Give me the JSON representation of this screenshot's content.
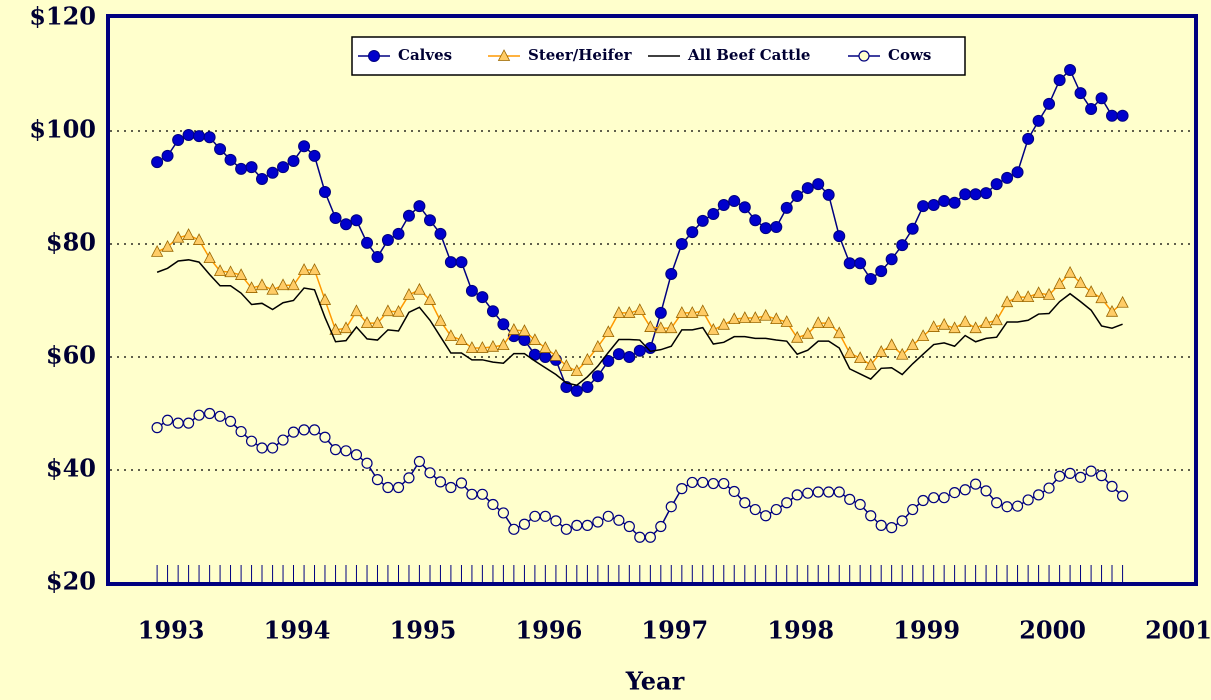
{
  "chart_data": {
    "type": "line",
    "x_label": "Year",
    "x": [
      1993,
      1993.083,
      1993.167,
      1993.25,
      1993.333,
      1993.417,
      1993.5,
      1993.583,
      1993.667,
      1993.75,
      1993.833,
      1993.917,
      1994,
      1994.083,
      1994.167,
      1994.25,
      1994.333,
      1994.417,
      1994.5,
      1994.583,
      1994.667,
      1994.75,
      1994.833,
      1994.917,
      1995,
      1995.083,
      1995.167,
      1995.25,
      1995.333,
      1995.417,
      1995.5,
      1995.583,
      1995.667,
      1995.75,
      1995.833,
      1995.917,
      1996,
      1996.083,
      1996.167,
      1996.25,
      1996.333,
      1996.417,
      1996.5,
      1996.583,
      1996.667,
      1996.75,
      1996.833,
      1996.917,
      1997,
      1997.083,
      1997.167,
      1997.25,
      1997.333,
      1997.417,
      1997.5,
      1997.583,
      1997.667,
      1997.75,
      1997.833,
      1997.917,
      1998,
      1998.083,
      1998.167,
      1998.25,
      1998.333,
      1998.417,
      1998.5,
      1998.583,
      1998.667,
      1998.75,
      1998.833,
      1998.917,
      1999,
      1999.083,
      1999.167,
      1999.25,
      1999.333,
      1999.417,
      1999.5,
      1999.583,
      1999.667,
      1999.75,
      1999.833,
      1999.917,
      2000,
      2000.083,
      2000.167,
      2000.25,
      2000.333,
      2000.417,
      2000.5,
      2000.583,
      2000.667
    ],
    "series": [
      {
        "name": "Calves",
        "color": "#0000cc",
        "marker": "filled-circle",
        "values": [
          94.5,
          95.6,
          98.4,
          99.3,
          99.1,
          98.9,
          96.8,
          94.9,
          93.3,
          93.6,
          91.5,
          92.6,
          93.6,
          94.7,
          97.3,
          95.6,
          89.2,
          84.6,
          83.5,
          84.2,
          80.2,
          77.7,
          80.7,
          81.8,
          85.0,
          86.7,
          84.2,
          81.8,
          76.8,
          76.8,
          71.7,
          70.6,
          68.1,
          65.8,
          63.7,
          63.0,
          60.4,
          60.0,
          59.5,
          54.7,
          54.0,
          54.7,
          56.6,
          59.3,
          60.5,
          60.0,
          61.1,
          61.6,
          67.8,
          74.7,
          80.0,
          82.1,
          84.1,
          85.3,
          86.9,
          87.6,
          86.5,
          84.2,
          82.8,
          83.0,
          86.4,
          88.5,
          89.9,
          90.6,
          88.7,
          81.4,
          76.6,
          76.6,
          73.8,
          75.2,
          77.3,
          79.8,
          82.7,
          86.7,
          86.9,
          87.6,
          87.3,
          88.8,
          88.8,
          89.0,
          90.6,
          91.7,
          92.7,
          98.6,
          101.8,
          104.8,
          109.0,
          110.8,
          106.7,
          103.9,
          105.8,
          102.7,
          102.7
        ]
      },
      {
        "name": "Steer/Heifer",
        "color": "#ff9900",
        "marker": "triangle",
        "values": [
          78.6,
          79.5,
          81.1,
          81.6,
          80.7,
          77.5,
          75.2,
          75.0,
          74.5,
          72.2,
          72.7,
          71.9,
          72.7,
          72.7,
          75.4,
          75.4,
          70.1,
          64.8,
          65.1,
          68.1,
          66.0,
          66.0,
          68.1,
          68.0,
          71.0,
          71.9,
          70.1,
          66.4,
          63.7,
          63.0,
          61.6,
          61.6,
          61.8,
          62.1,
          64.8,
          64.6,
          63.0,
          61.6,
          60.2,
          58.4,
          57.5,
          59.5,
          61.8,
          64.4,
          67.8,
          67.8,
          68.3,
          65.3,
          65.1,
          65.1,
          67.8,
          67.8,
          68.1,
          64.8,
          65.7,
          66.7,
          66.9,
          66.9,
          67.3,
          66.7,
          66.2,
          63.4,
          64.1,
          66.0,
          66.0,
          64.2,
          60.7,
          59.8,
          58.6,
          60.9,
          62.1,
          60.4,
          62.1,
          63.7,
          65.3,
          65.7,
          65.1,
          66.2,
          65.1,
          66.0,
          66.5,
          69.7,
          70.6,
          70.6,
          71.3,
          71.0,
          72.9,
          74.9,
          73.1,
          71.5,
          70.4,
          68.0,
          69.6
        ]
      },
      {
        "name": "All Beef Cattle",
        "color": "#000000",
        "marker": "none",
        "values": [
          75.0,
          75.7,
          77.0,
          77.2,
          76.8,
          74.6,
          72.6,
          72.6,
          71.3,
          69.3,
          69.5,
          68.4,
          69.6,
          70.0,
          72.2,
          71.9,
          67.0,
          62.7,
          62.9,
          65.3,
          63.2,
          63.0,
          64.8,
          64.6,
          67.9,
          68.8,
          66.5,
          63.6,
          60.7,
          60.7,
          59.5,
          59.5,
          59.1,
          58.9,
          60.6,
          60.6,
          59.3,
          58.1,
          56.9,
          55.4,
          55.0,
          56.5,
          58.4,
          60.8,
          63.1,
          63.1,
          63.0,
          61.0,
          61.3,
          61.9,
          64.8,
          64.8,
          65.2,
          62.3,
          62.6,
          63.6,
          63.6,
          63.3,
          63.3,
          63.0,
          62.8,
          60.5,
          61.2,
          62.8,
          62.8,
          61.6,
          57.9,
          57.0,
          56.1,
          58.0,
          58.1,
          56.9,
          58.8,
          60.5,
          62.2,
          62.5,
          61.9,
          63.8,
          62.7,
          63.3,
          63.5,
          66.2,
          66.2,
          66.5,
          67.6,
          67.7,
          69.8,
          71.2,
          69.8,
          68.3,
          65.5,
          65.1,
          65.8
        ]
      },
      {
        "name": "Cows",
        "color": "#000080",
        "marker": "open-circle",
        "values": [
          47.5,
          48.8,
          48.3,
          48.3,
          49.7,
          50.0,
          49.5,
          48.6,
          46.8,
          45.1,
          43.9,
          43.9,
          45.3,
          46.7,
          47.1,
          47.1,
          45.8,
          43.6,
          43.4,
          42.7,
          41.2,
          38.3,
          36.9,
          36.9,
          38.6,
          41.5,
          39.5,
          37.9,
          36.9,
          37.7,
          35.7,
          35.7,
          33.9,
          32.4,
          29.5,
          30.4,
          31.8,
          31.8,
          31.0,
          29.5,
          30.2,
          30.2,
          30.8,
          31.8,
          31.1,
          30.0,
          28.1,
          28.1,
          30.0,
          33.5,
          36.7,
          37.8,
          37.8,
          37.6,
          37.6,
          36.2,
          34.2,
          33.0,
          31.9,
          33.0,
          34.2,
          35.6,
          35.9,
          36.1,
          36.1,
          36.1,
          34.8,
          33.9,
          31.9,
          30.2,
          29.8,
          31.0,
          33.0,
          34.6,
          35.1,
          35.1,
          36.0,
          36.5,
          37.5,
          36.3,
          34.2,
          33.5,
          33.6,
          34.7,
          35.6,
          36.8,
          38.9,
          39.4,
          38.7,
          39.8,
          39.0,
          37.1,
          35.4
        ]
      }
    ],
    "xlim": [
      1992.61,
      2001.25
    ],
    "xticks": [
      1993,
      1994,
      1995,
      1996,
      1997,
      1998,
      1999,
      2000,
      2001
    ],
    "ylim": [
      20,
      120
    ],
    "yticks": [
      {
        "value": 20,
        "label": "$20"
      },
      {
        "value": 40,
        "label": "$40"
      },
      {
        "value": 60,
        "label": "$60"
      },
      {
        "value": 80,
        "label": "$80"
      },
      {
        "value": 100,
        "label": "$100"
      },
      {
        "value": 120,
        "label": "$120"
      }
    ],
    "grid": true,
    "legend": "top"
  }
}
